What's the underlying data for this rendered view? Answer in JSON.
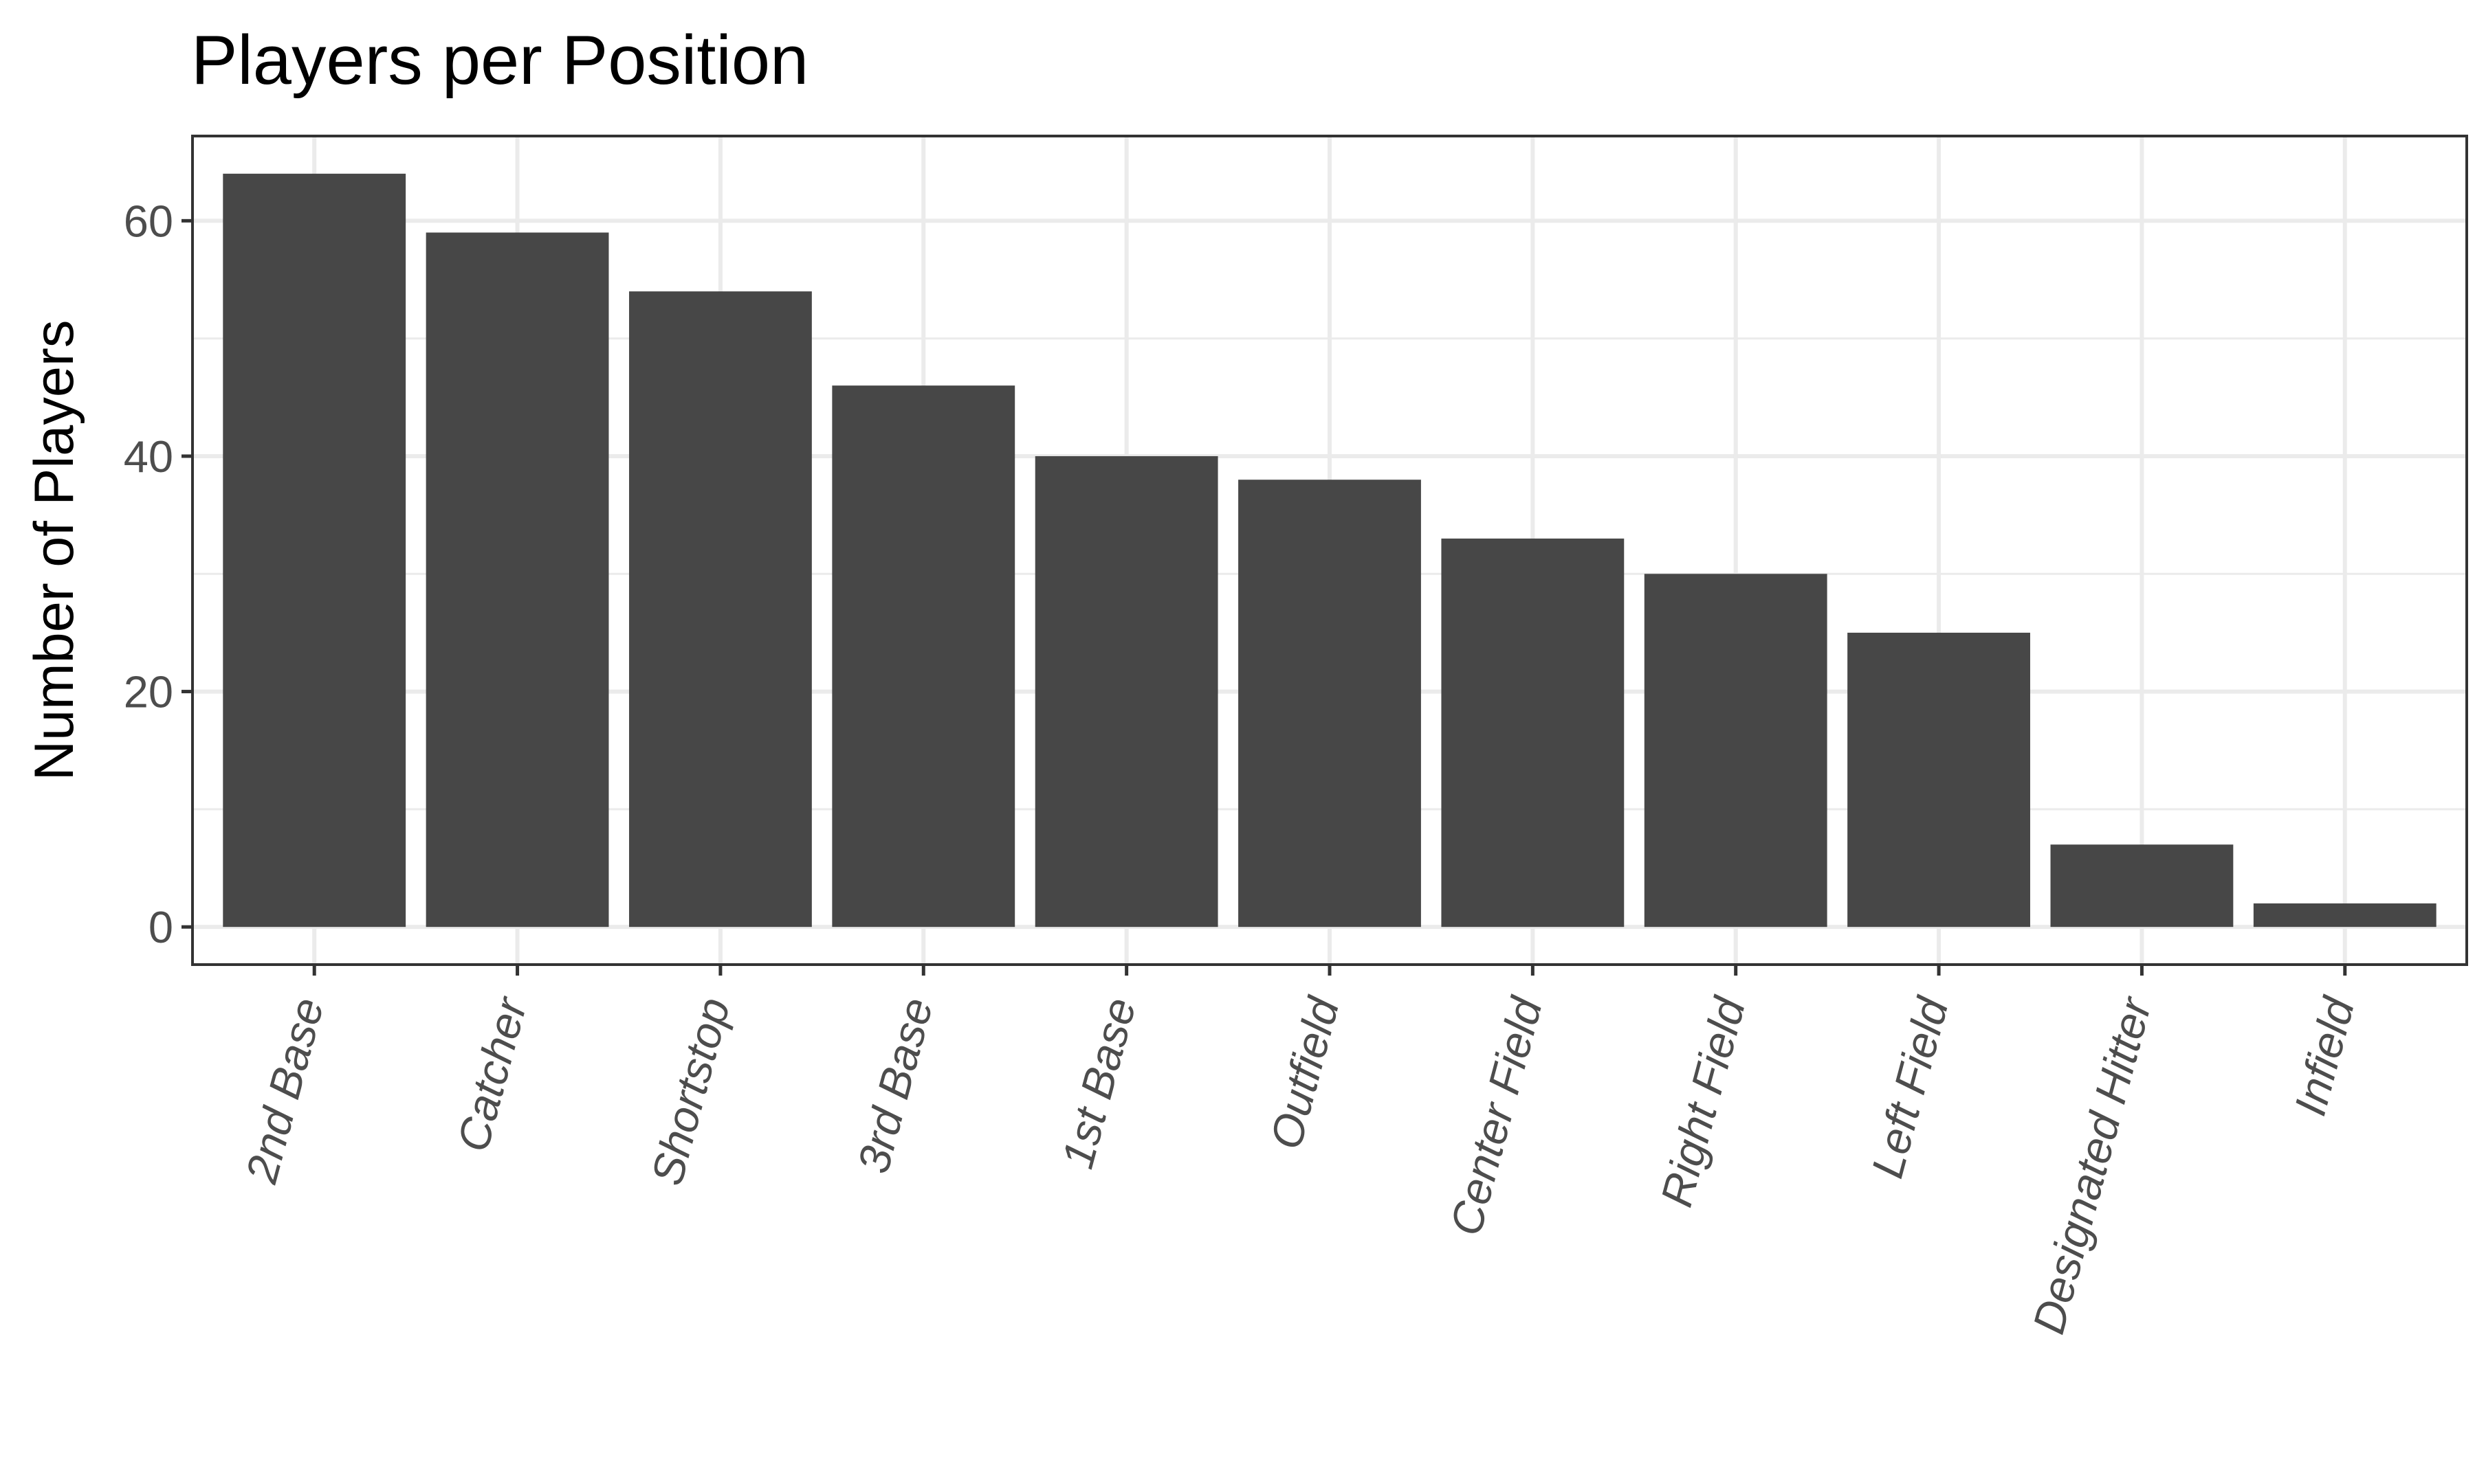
{
  "chart_data": {
    "type": "bar",
    "title": "Players per Position",
    "xlabel": "",
    "ylabel": "Number of Players",
    "categories": [
      "2nd Base",
      "Catcher",
      "Shortstop",
      "3rd Base",
      "1st Base",
      "Outfield",
      "Center Field",
      "Right Field",
      "Left Field",
      "Designated Hitter",
      "Infield"
    ],
    "values": [
      64,
      59,
      54,
      46,
      40,
      38,
      33,
      30,
      25,
      7,
      2
    ],
    "ylim": [
      -3.2,
      67.2
    ],
    "yticks": [
      0,
      20,
      40,
      60
    ],
    "ytick_labels": [
      "0",
      "20",
      "40",
      "60"
    ],
    "grid": true,
    "legend": "none",
    "bar_color": "#474747"
  }
}
